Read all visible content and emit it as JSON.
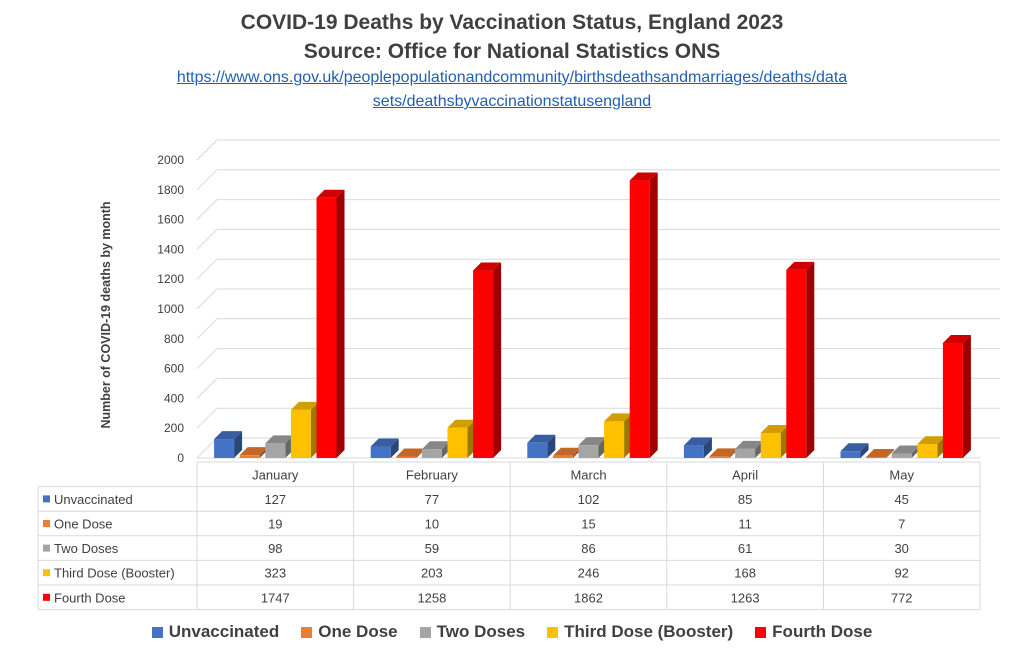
{
  "header": {
    "title_line1": "COVID-19 Deaths by Vaccination Status, England 2023",
    "title_line2": "Source: Office for National Statistics ONS",
    "link_line1": "https://www.ons.gov.uk/peoplepopulationandcommunity/birthsdeathsandmarriages/deaths/data",
    "link_line2": "sets/deathsbyvaccinationstatusengland"
  },
  "chart_data": {
    "type": "bar",
    "title": "COVID-19 Deaths by Vaccination Status, England 2023",
    "ylabel": "Number of COVID-19 deaths by month",
    "xlabel": "",
    "ylim": [
      0,
      2000
    ],
    "yticks": [
      0,
      200,
      400,
      600,
      800,
      1000,
      1200,
      1400,
      1600,
      1800,
      2000
    ],
    "categories": [
      "January",
      "February",
      "March",
      "April",
      "May"
    ],
    "series": [
      {
        "name": "Unvaccinated",
        "color": "#4472c4",
        "values": [
          127,
          77,
          102,
          85,
          45
        ]
      },
      {
        "name": "One Dose",
        "color": "#ed7d31",
        "values": [
          19,
          10,
          15,
          11,
          7
        ]
      },
      {
        "name": "Two Doses",
        "color": "#a5a5a5",
        "values": [
          98,
          59,
          86,
          61,
          30
        ]
      },
      {
        "name": "Third Dose (Booster)",
        "color": "#ffc000",
        "values": [
          323,
          203,
          246,
          168,
          92
        ]
      },
      {
        "name": "Fourth Dose",
        "color": "#ff0000",
        "values": [
          1747,
          1258,
          1862,
          1263,
          772
        ]
      }
    ],
    "grid": true,
    "data_table": true,
    "legend": "bottom"
  }
}
